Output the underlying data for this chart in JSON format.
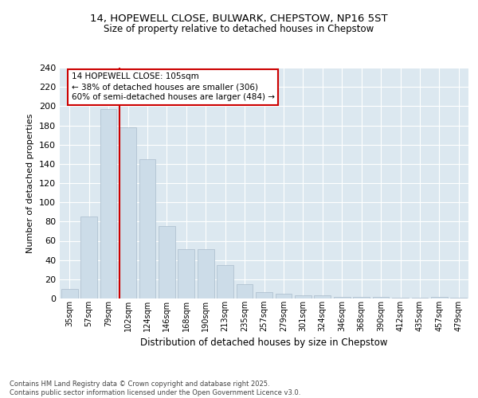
{
  "title1": "14, HOPEWELL CLOSE, BULWARK, CHEPSTOW, NP16 5ST",
  "title2": "Size of property relative to detached houses in Chepstow",
  "xlabel": "Distribution of detached houses by size in Chepstow",
  "ylabel": "Number of detached properties",
  "categories": [
    "35sqm",
    "57sqm",
    "79sqm",
    "102sqm",
    "124sqm",
    "146sqm",
    "168sqm",
    "190sqm",
    "213sqm",
    "235sqm",
    "257sqm",
    "279sqm",
    "301sqm",
    "324sqm",
    "346sqm",
    "368sqm",
    "390sqm",
    "412sqm",
    "435sqm",
    "457sqm",
    "479sqm"
  ],
  "values": [
    10,
    85,
    197,
    178,
    145,
    75,
    51,
    51,
    35,
    15,
    7,
    5,
    3,
    3,
    2,
    2,
    2,
    1,
    1,
    2,
    1
  ],
  "bar_color": "#ccdce8",
  "bar_edge_color": "#aabccc",
  "vline_color": "#cc0000",
  "annotation_text": "14 HOPEWELL CLOSE: 105sqm\n← 38% of detached houses are smaller (306)\n60% of semi-detached houses are larger (484) →",
  "annotation_box_facecolor": "#ffffff",
  "annotation_box_edgecolor": "#cc0000",
  "ylim": [
    0,
    240
  ],
  "yticks": [
    0,
    20,
    40,
    60,
    80,
    100,
    120,
    140,
    160,
    180,
    200,
    220,
    240
  ],
  "fig_bg_color": "#ffffff",
  "plot_bg_color": "#dce8f0",
  "grid_color": "#ffffff",
  "footer": "Contains HM Land Registry data © Crown copyright and database right 2025.\nContains public sector information licensed under the Open Government Licence v3.0.",
  "footer_color": "#444444"
}
